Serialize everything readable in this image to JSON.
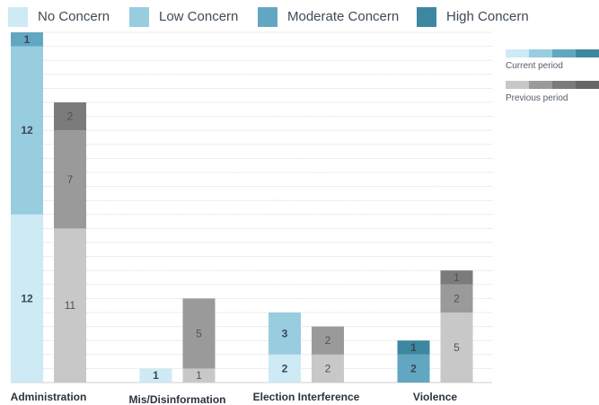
{
  "legend": {
    "items": [
      {
        "label": "No Concern",
        "color": "#cdeaf5"
      },
      {
        "label": "Low Concern",
        "color": "#98cde0"
      },
      {
        "label": "Moderate Concern",
        "color": "#62a7c1"
      },
      {
        "label": "High Concern",
        "color": "#3d87a0"
      }
    ]
  },
  "period_legend": {
    "current": {
      "label": "Current period",
      "colors": [
        "#cdeaf5",
        "#98cde0",
        "#62a7c1",
        "#3d87a0"
      ]
    },
    "previous": {
      "label": "Previous period",
      "colors": [
        "#c8c8c8",
        "#9a9a9a",
        "#7b7b7b",
        "#666666"
      ]
    }
  },
  "chart_data": {
    "type": "bar",
    "stacked": true,
    "categories": [
      "Administration",
      "Mis/Disinformation",
      "Election Interference",
      "Violence"
    ],
    "stack_levels": [
      "No Concern",
      "Low Concern",
      "Moderate Concern",
      "High Concern"
    ],
    "series": [
      {
        "name": "Current period",
        "values": [
          [
            12,
            12,
            1,
            0
          ],
          [
            1,
            0,
            0,
            0
          ],
          [
            2,
            3,
            0,
            0
          ],
          [
            0,
            0,
            2,
            1
          ]
        ]
      },
      {
        "name": "Previous period",
        "values": [
          [
            11,
            7,
            2,
            0
          ],
          [
            1,
            5,
            0,
            0
          ],
          [
            2,
            2,
            0,
            0
          ],
          [
            5,
            2,
            1,
            0
          ]
        ]
      }
    ],
    "ylim": [
      0,
      25
    ],
    "grid": true,
    "legend_position": "top"
  }
}
